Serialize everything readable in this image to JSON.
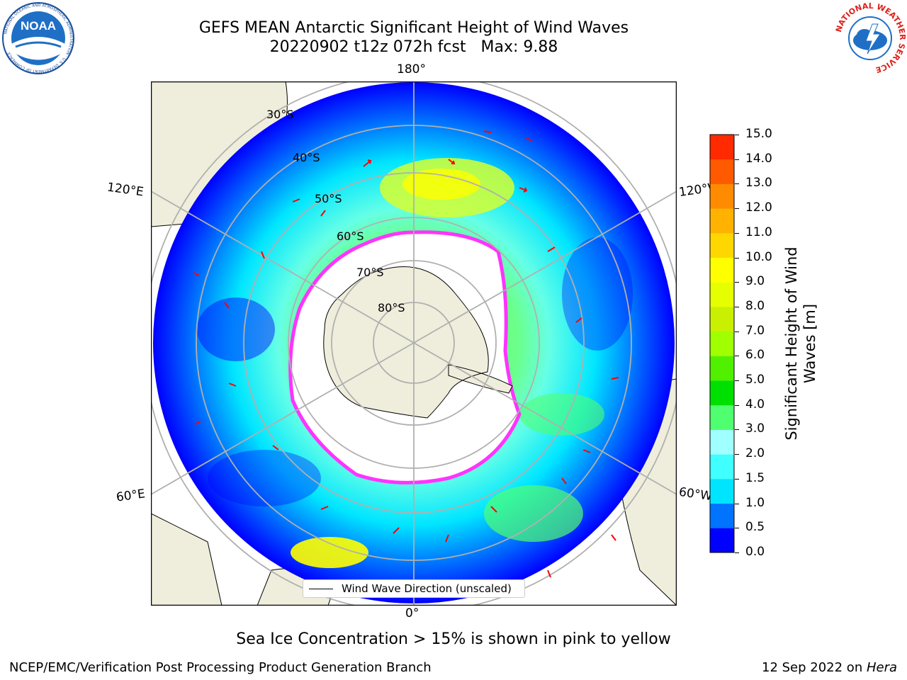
{
  "header": {
    "title": "GEFS MEAN Antarctic Significant Height of Wind Waves",
    "subtitle": "20220902 t12z 072h fcst   Max: 9.88"
  },
  "logos": {
    "left": "noaa-logo",
    "left_text": "NOAA",
    "left_ring_text": "NATIONAL OCEANIC AND ATMOSPHERIC ADMINISTRATION · U.S. DEPARTMENT OF COMMERCE",
    "right": "national-weather-service-logo",
    "right_ring_text": "NATIONAL WEATHER SERVICE"
  },
  "map": {
    "projection": "south-polar-stereographic",
    "lon_labels": {
      "top": "180°",
      "bottom": "0°",
      "upper_left": "120°E",
      "upper_right": "120°W",
      "lower_left": "60°E",
      "lower_right": "60°W"
    },
    "lat_labels": [
      "30°S",
      "40°S",
      "50°S",
      "60°S",
      "70°S",
      "80°S"
    ],
    "land_color": "#efeedc",
    "ocean_colors": {
      "low": "#0000ff",
      "mid": "#00e5ff",
      "high": "#ffff00"
    },
    "ice_color": "#ff33ff",
    "arrow_color": "#ff0000",
    "legend_label": "Wind Wave Direction (unscaled)"
  },
  "colorbar": {
    "label": "Significant Height of Wind Waves [m]",
    "label_line1": "Significant Height of Wind",
    "label_line2": "Waves [m]",
    "ticks": [
      "0.0",
      "0.5",
      "1.0",
      "1.5",
      "2.0",
      "3.0",
      "4.0",
      "5.0",
      "6.0",
      "7.0",
      "8.0",
      "9.0",
      "10.0",
      "11.0",
      "12.0",
      "13.0",
      "14.0",
      "15.0"
    ],
    "colors": [
      "#0000ff",
      "#0073ff",
      "#00e5ff",
      "#40ffff",
      "#a0ffff",
      "#50ff70",
      "#00e000",
      "#50f000",
      "#a0ff00",
      "#c8f000",
      "#e6ff00",
      "#ffff00",
      "#ffd700",
      "#ffb300",
      "#ff8c00",
      "#ff5a00",
      "#ff2a00"
    ]
  },
  "caption": "Sea Ice Concentration > 15% is shown in pink to yellow",
  "footer": {
    "left": "NCEP/EMC/Verification Post Processing Product Generation Branch",
    "right_date": "12 Sep 2022 on ",
    "right_host": "Hera"
  }
}
